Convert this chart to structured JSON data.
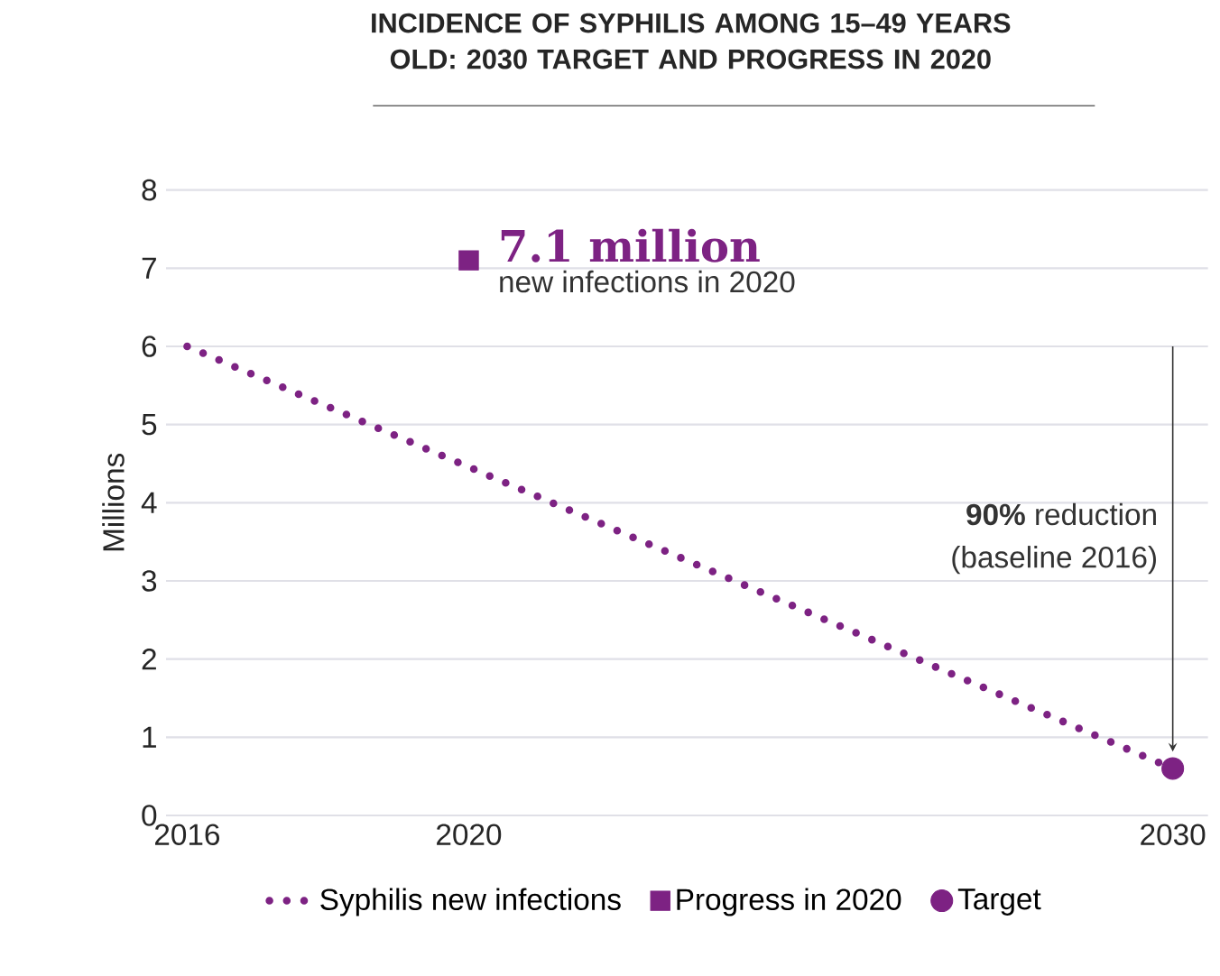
{
  "chart_data": {
    "type": "line",
    "title": "INCIDENCE OF SYPHILIS AMONG 15–49 YEARS OLD: 2030 TARGET AND PROGRESS IN 2020",
    "ylabel": "Millions",
    "xlim": [
      2015.7,
      2030.5
    ],
    "xticks": [
      2016,
      2020,
      2030
    ],
    "ylim": [
      0,
      8
    ],
    "yticks": [
      0,
      1,
      2,
      3,
      4,
      5,
      6,
      7,
      8
    ],
    "grid": "y",
    "legend": "bottom",
    "series": [
      {
        "name": "Syphilis new infections",
        "line_style": "dotted",
        "marker": "none",
        "color": "#7d2283",
        "x": [
          2016,
          2030
        ],
        "values": [
          6.0,
          0.6
        ]
      },
      {
        "name": "Progress in 2020",
        "type": "scatter",
        "marker": "square",
        "color": "#7d2283",
        "x": [
          2020
        ],
        "values": [
          7.1
        ]
      },
      {
        "name": "Target",
        "type": "scatter",
        "marker": "circle",
        "color": "#7d2283",
        "x": [
          2030
        ],
        "values": [
          0.6
        ]
      }
    ],
    "annotations": [
      {
        "text": "7.1 million",
        "x": 2020,
        "y": 7.1
      },
      {
        "text": "new infections in 2020",
        "x": 2020,
        "y": 7.1
      },
      "**90%** reduction",
      "(baseline 2016)"
    ]
  }
}
